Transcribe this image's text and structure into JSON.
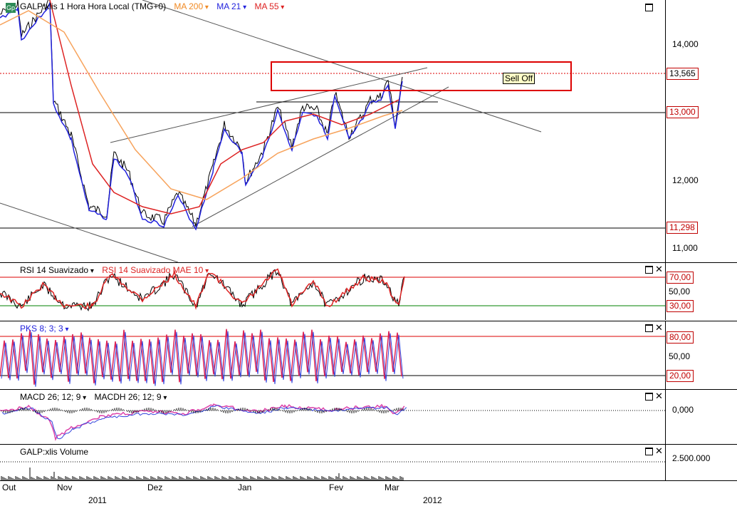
{
  "price_pane": {
    "symbol_legend": "GALP:xlis 1 Hora Hora Local (TMG+0)",
    "ma200_label": "MA 200",
    "ma21_label": "MA 21",
    "ma55_label": "MA 55",
    "annotation": "Sell Off",
    "y_ticks": [
      "14,000",
      "12,000",
      "11,000"
    ],
    "level_current": "13,565",
    "level_upper": "13,000",
    "level_lower": "11,298",
    "colors": {
      "ma200": "#f7a35c",
      "ma21": "#2222dd",
      "ma55": "#dd2222",
      "price": "#000000"
    }
  },
  "rsi_pane": {
    "label_main": "RSI 14 Suavizado",
    "label_avg": "RSI 14 Suavizado MAE 10",
    "level_high": "70,00",
    "level_mid": "50,00",
    "level_low": "30,00"
  },
  "pks_pane": {
    "label": "PKS 8; 3; 3",
    "level_high": "80,00",
    "level_mid": "50,00",
    "level_low": "20,00"
  },
  "macd_pane": {
    "label_macd": "MACD 26; 12; 9",
    "label_macdh": "MACDH 26; 12; 9",
    "level_zero": "0,000"
  },
  "volume_pane": {
    "label": "GALP:xlis Volume",
    "level": "2.500.000"
  },
  "time_axis": {
    "months": [
      "Out",
      "Nov",
      "Dez",
      "Jan",
      "Fev",
      "Mar"
    ],
    "years": [
      "2011",
      "2012"
    ]
  }
}
